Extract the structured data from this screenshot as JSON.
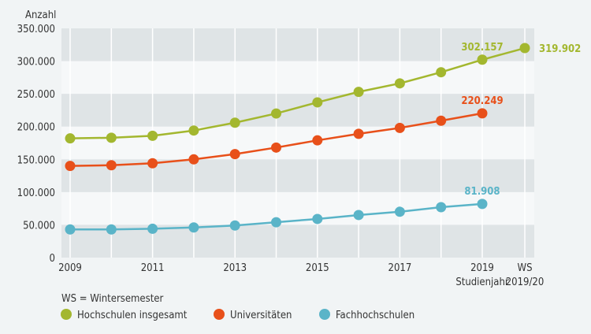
{
  "chart_data": {
    "type": "line",
    "ylabel": "Anzahl",
    "ylim": [
      0,
      350000
    ],
    "yticks": [
      0,
      50000,
      100000,
      150000,
      200000,
      250000,
      300000,
      350000
    ],
    "ytick_labels": [
      "0",
      "50.000",
      "100.000",
      "150.000",
      "200.000",
      "250.000",
      "300.000",
      "350.000"
    ],
    "x": [
      "2009",
      "2010",
      "2011",
      "2012",
      "2013",
      "2014",
      "2015",
      "2016",
      "2017",
      "2018",
      "2019",
      "WS 2019/20"
    ],
    "xtick_labels": [
      {
        "index": 0,
        "lines": [
          "2009"
        ]
      },
      {
        "index": 2,
        "lines": [
          "2011"
        ]
      },
      {
        "index": 4,
        "lines": [
          "2013"
        ]
      },
      {
        "index": 6,
        "lines": [
          "2015"
        ]
      },
      {
        "index": 8,
        "lines": [
          "2017"
        ]
      },
      {
        "index": 10,
        "lines": [
          "2019",
          "Studienjahr"
        ]
      },
      {
        "index": 11,
        "lines": [
          "WS",
          "2019/20"
        ]
      }
    ],
    "series": [
      {
        "name": "Hochschulen insgesamt",
        "color": "#a3b72f",
        "values": [
          182000,
          183000,
          186000,
          194000,
          206000,
          220000,
          237000,
          253000,
          266000,
          283000,
          302157,
          319902
        ],
        "labels": [
          {
            "index": 10,
            "text": "302.157",
            "pos": "above"
          },
          {
            "index": 11,
            "text": "319.902",
            "pos": "right"
          }
        ]
      },
      {
        "name": "Universitäten",
        "color": "#e8501a",
        "values": [
          140000,
          141000,
          144000,
          150000,
          158000,
          168000,
          179000,
          189000,
          198000,
          209000,
          220249,
          null
        ],
        "labels": [
          {
            "index": 10,
            "text": "220.249",
            "pos": "above"
          }
        ]
      },
      {
        "name": "Fachhochschulen",
        "color": "#5ab4c8",
        "values": [
          43000,
          43000,
          44000,
          46000,
          49000,
          54000,
          59000,
          65000,
          70000,
          77000,
          81908,
          null
        ],
        "labels": [
          {
            "index": 10,
            "text": "81.908",
            "pos": "above"
          }
        ]
      }
    ],
    "legend_note": "WS = Wintersemester",
    "legend_position": "bottom-left",
    "grid": true
  }
}
